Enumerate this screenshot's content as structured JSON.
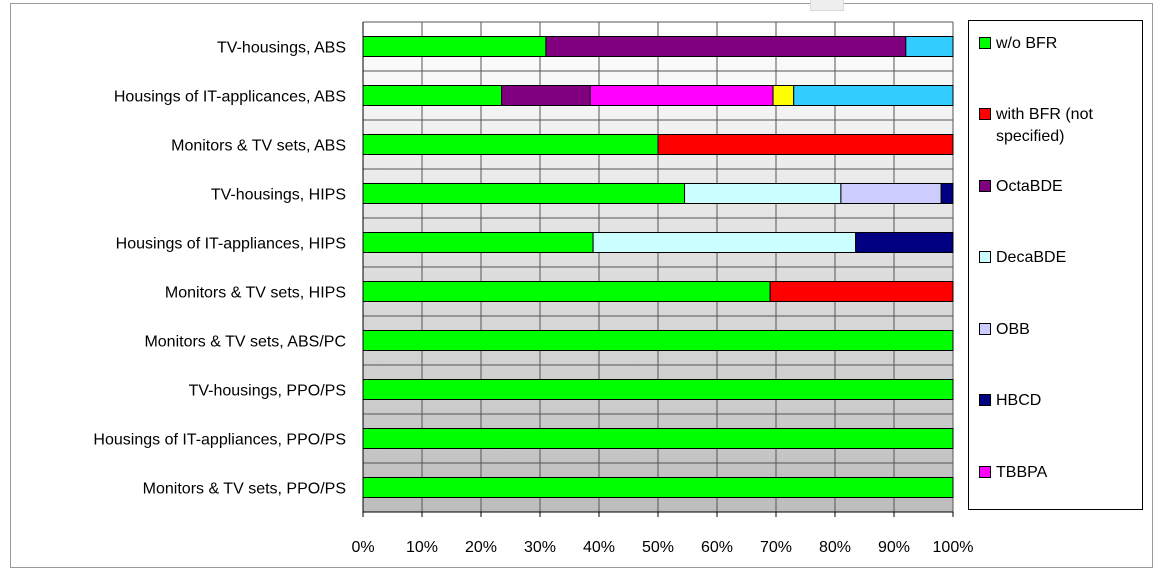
{
  "chart_data": {
    "type": "bar",
    "orientation": "horizontal",
    "stacked": true,
    "normalized": true,
    "title": "",
    "xlabel": "",
    "ylabel": "",
    "xlim": [
      0,
      100
    ],
    "x_ticks": [
      "0%",
      "10%",
      "20%",
      "30%",
      "40%",
      "50%",
      "60%",
      "70%",
      "80%",
      "90%",
      "100%"
    ],
    "grid": true,
    "legend_position": "right",
    "categories": [
      "TV-housings, ABS",
      "Housings of IT-applicances, ABS",
      "Monitors & TV sets, ABS",
      "TV-housings, HIPS",
      "Housings of IT-appliances, HIPS",
      "Monitors & TV sets, HIPS",
      "Monitors & TV sets, ABS/PC",
      "TV-housings, PPO/PS",
      "Housings of IT-appliances, PPO/PS",
      "Monitors & TV sets, PPO/PS"
    ],
    "series": [
      {
        "name": "w/o BFR",
        "color": "#00ff00",
        "values": [
          31,
          23.5,
          50,
          54.5,
          39,
          69,
          100,
          100,
          100,
          100
        ]
      },
      {
        "name": "with BFR (not specified)",
        "color": "#ff0000",
        "values": [
          0,
          0,
          50,
          0,
          0,
          31,
          0,
          0,
          0,
          0
        ]
      },
      {
        "name": "OctaBDE",
        "color": "#800080",
        "values": [
          61,
          15,
          0,
          0,
          0,
          0,
          0,
          0,
          0,
          0
        ]
      },
      {
        "name": "DecaBDE",
        "color": "#ccffff",
        "values": [
          0,
          0,
          0,
          26.5,
          44.5,
          0,
          0,
          0,
          0,
          0
        ]
      },
      {
        "name": "OBB",
        "color": "#ccccff",
        "values": [
          0,
          0,
          0,
          17,
          0,
          0,
          0,
          0,
          0,
          0
        ]
      },
      {
        "name": "HBCD",
        "color": "#000080",
        "values": [
          0,
          0,
          0,
          2,
          16.5,
          0,
          0,
          0,
          0,
          0
        ]
      },
      {
        "name": "TBBPA",
        "color": "#ff00ff",
        "values": [
          0,
          31,
          0,
          0,
          0,
          0,
          0,
          0,
          0,
          0
        ]
      },
      {
        "name": "",
        "color": "#ffff00",
        "values": [
          0,
          3.5,
          0,
          0,
          0,
          0,
          0,
          0,
          0,
          0
        ]
      },
      {
        "name": "",
        "color": "#33ccff",
        "values": [
          8,
          27,
          0,
          0,
          0,
          0,
          0,
          0,
          0,
          0
        ]
      }
    ]
  }
}
